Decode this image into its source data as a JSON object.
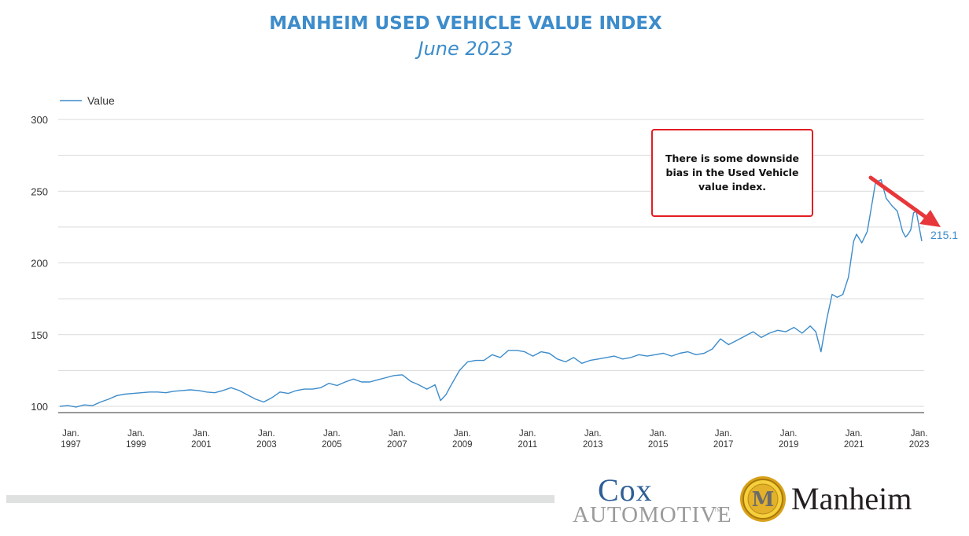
{
  "header": {
    "title": "MANHEIM USED VEHICLE VALUE INDEX",
    "subtitle": "June 2023"
  },
  "callout": {
    "text": "There is some downside bias in the Used Vehicle value index."
  },
  "colors": {
    "title": "#3d8ccb",
    "line": "#3d8ccb",
    "grid": "#d9d9d9",
    "arrow": "#e8373a",
    "callout_border": "#e21d24"
  },
  "logos": {
    "cox_top": "Cox",
    "cox_bottom": "AUTOMOTIVE",
    "cox_tm": "TM",
    "manheim_word": "Manheim",
    "manheim_emblem_letter": "M"
  },
  "chart_data": {
    "type": "line",
    "legend": {
      "entries": [
        "Value"
      ],
      "placement": "top-left"
    },
    "end_label": "215.1",
    "ylim": [
      100,
      300
    ],
    "yticks": [
      100,
      150,
      200,
      250,
      300
    ],
    "xlim": [
      1997.0,
      2023.42
    ],
    "grid": true,
    "xticks": [
      {
        "x": 1997,
        "line1": "Jan.",
        "line2": "1997"
      },
      {
        "x": 1999,
        "line1": "Jan.",
        "line2": "1999"
      },
      {
        "x": 2001,
        "line1": "Jan.",
        "line2": "2001"
      },
      {
        "x": 2003,
        "line1": "Jan.",
        "line2": "2003"
      },
      {
        "x": 2005,
        "line1": "Jan.",
        "line2": "2005"
      },
      {
        "x": 2007,
        "line1": "Jan.",
        "line2": "2007"
      },
      {
        "x": 2009,
        "line1": "Jan.",
        "line2": "2009"
      },
      {
        "x": 2011,
        "line1": "Jan.",
        "line2": "2011"
      },
      {
        "x": 2013,
        "line1": "Jan.",
        "line2": "2013"
      },
      {
        "x": 2015,
        "line1": "Jan.",
        "line2": "2015"
      },
      {
        "x": 2017,
        "line1": "Jan.",
        "line2": "2017"
      },
      {
        "x": 2019,
        "line1": "Jan.",
        "line2": "2019"
      },
      {
        "x": 2021,
        "line1": "Jan.",
        "line2": "2021"
      },
      {
        "x": 2023,
        "line1": "Jan.",
        "line2": "2023"
      }
    ],
    "series": [
      {
        "name": "Value",
        "points": [
          [
            1997.0,
            100
          ],
          [
            1997.25,
            100.5
          ],
          [
            1997.5,
            99.5
          ],
          [
            1997.75,
            101
          ],
          [
            1998.0,
            100.5
          ],
          [
            1998.25,
            103
          ],
          [
            1998.5,
            105
          ],
          [
            1998.75,
            107.5
          ],
          [
            1999.0,
            108.5
          ],
          [
            1999.25,
            109
          ],
          [
            1999.5,
            109.5
          ],
          [
            1999.75,
            110
          ],
          [
            2000.0,
            110
          ],
          [
            2000.25,
            109.5
          ],
          [
            2000.5,
            110.5
          ],
          [
            2000.75,
            111
          ],
          [
            2001.0,
            111.5
          ],
          [
            2001.25,
            111
          ],
          [
            2001.5,
            110
          ],
          [
            2001.75,
            109.5
          ],
          [
            2002.0,
            111
          ],
          [
            2002.25,
            113
          ],
          [
            2002.5,
            111
          ],
          [
            2002.75,
            108
          ],
          [
            2003.0,
            105
          ],
          [
            2003.25,
            103
          ],
          [
            2003.5,
            106
          ],
          [
            2003.75,
            110
          ],
          [
            2004.0,
            109
          ],
          [
            2004.25,
            111
          ],
          [
            2004.5,
            112
          ],
          [
            2004.75,
            112
          ],
          [
            2005.0,
            113
          ],
          [
            2005.25,
            116
          ],
          [
            2005.5,
            114.5
          ],
          [
            2005.75,
            117
          ],
          [
            2006.0,
            119
          ],
          [
            2006.25,
            117
          ],
          [
            2006.5,
            117
          ],
          [
            2006.75,
            118.5
          ],
          [
            2007.0,
            120
          ],
          [
            2007.25,
            121.5
          ],
          [
            2007.5,
            122
          ],
          [
            2007.75,
            117.5
          ],
          [
            2008.0,
            115
          ],
          [
            2008.25,
            112
          ],
          [
            2008.5,
            115
          ],
          [
            2008.67,
            104
          ],
          [
            2008.83,
            108
          ],
          [
            2009.0,
            115
          ],
          [
            2009.25,
            125
          ],
          [
            2009.5,
            131
          ],
          [
            2009.75,
            132
          ],
          [
            2010.0,
            132
          ],
          [
            2010.25,
            136
          ],
          [
            2010.5,
            134
          ],
          [
            2010.75,
            139
          ],
          [
            2011.0,
            139
          ],
          [
            2011.25,
            138
          ],
          [
            2011.5,
            135
          ],
          [
            2011.75,
            138
          ],
          [
            2012.0,
            137
          ],
          [
            2012.25,
            133
          ],
          [
            2012.5,
            131
          ],
          [
            2012.75,
            134
          ],
          [
            2013.0,
            130
          ],
          [
            2013.25,
            132
          ],
          [
            2013.5,
            133
          ],
          [
            2013.75,
            134
          ],
          [
            2014.0,
            135
          ],
          [
            2014.25,
            133
          ],
          [
            2014.5,
            134
          ],
          [
            2014.75,
            136
          ],
          [
            2015.0,
            135
          ],
          [
            2015.25,
            136
          ],
          [
            2015.5,
            137
          ],
          [
            2015.75,
            135
          ],
          [
            2016.0,
            137
          ],
          [
            2016.25,
            138
          ],
          [
            2016.5,
            136
          ],
          [
            2016.75,
            137
          ],
          [
            2017.0,
            140
          ],
          [
            2017.25,
            147
          ],
          [
            2017.5,
            143
          ],
          [
            2017.75,
            146
          ],
          [
            2018.0,
            149
          ],
          [
            2018.25,
            152
          ],
          [
            2018.5,
            148
          ],
          [
            2018.75,
            151
          ],
          [
            2019.0,
            153
          ],
          [
            2019.25,
            152
          ],
          [
            2019.5,
            155
          ],
          [
            2019.75,
            151
          ],
          [
            2020.0,
            156
          ],
          [
            2020.17,
            152
          ],
          [
            2020.33,
            138
          ],
          [
            2020.5,
            160
          ],
          [
            2020.67,
            178
          ],
          [
            2020.83,
            176
          ],
          [
            2021.0,
            178
          ],
          [
            2021.17,
            190
          ],
          [
            2021.33,
            215
          ],
          [
            2021.42,
            220
          ],
          [
            2021.58,
            214
          ],
          [
            2021.75,
            222
          ],
          [
            2021.92,
            245
          ],
          [
            2022.0,
            256
          ],
          [
            2022.17,
            258
          ],
          [
            2022.33,
            245
          ],
          [
            2022.5,
            240
          ],
          [
            2022.67,
            236
          ],
          [
            2022.83,
            222
          ],
          [
            2022.92,
            218
          ],
          [
            2023.0,
            220
          ],
          [
            2023.08,
            223
          ],
          [
            2023.17,
            235
          ],
          [
            2023.25,
            236
          ],
          [
            2023.33,
            226
          ],
          [
            2023.42,
            215.1
          ]
        ]
      }
    ]
  }
}
